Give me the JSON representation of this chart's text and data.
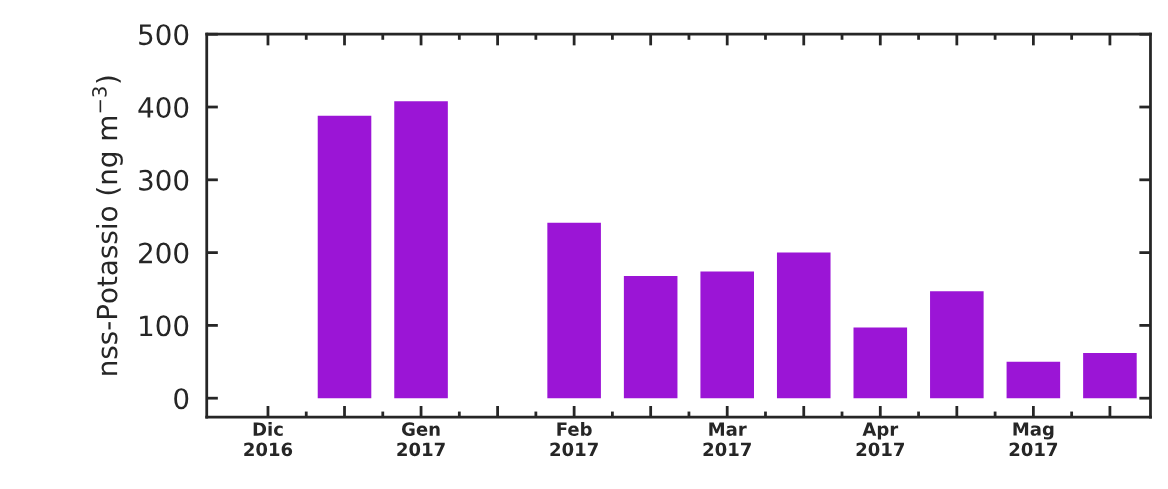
{
  "chart_data": {
    "type": "bar",
    "ylabel": "nss-Potassio (ng m$^{−3}$)",
    "categories": [
      "Dic\n2016",
      null,
      "Gen\n2017",
      null,
      "Feb\n2017",
      null,
      "Mar\n2017",
      null,
      "Apr\n2017",
      null,
      "Mag\n2017",
      null
    ],
    "values": [
      null,
      388,
      408,
      null,
      241,
      168,
      174,
      200,
      97,
      147,
      50,
      62
    ],
    "color": "#9b15d6",
    "ylim": [
      -26,
      500
    ],
    "yticks": [
      0,
      100,
      200,
      300,
      400,
      500
    ],
    "grid": false
  }
}
